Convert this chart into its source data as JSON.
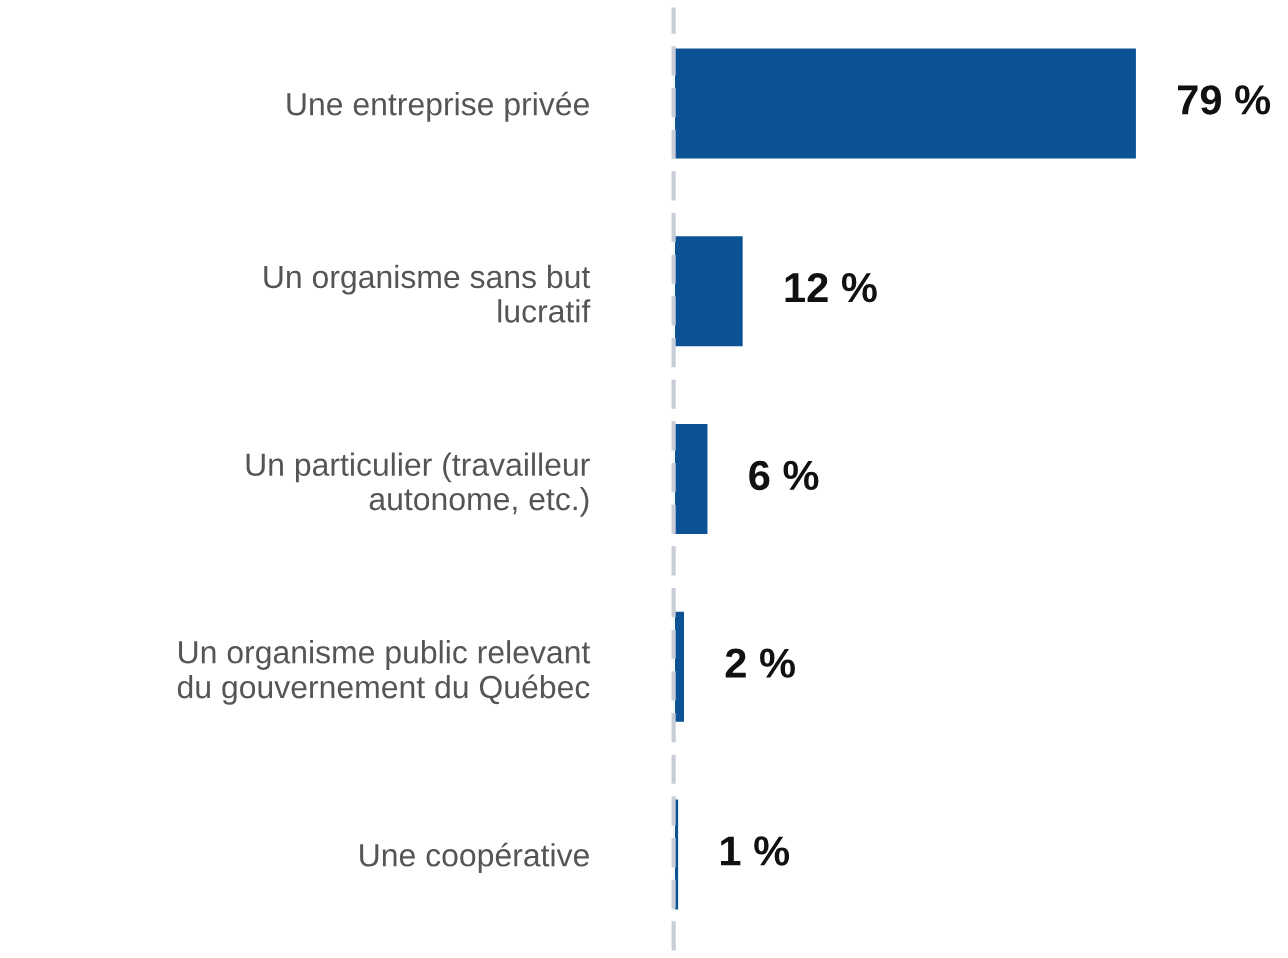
{
  "chart_data": {
    "type": "bar",
    "orientation": "horizontal",
    "categories": [
      "Une entreprise privée",
      "Un organisme sans but\nlucratif",
      "Un particulier (travailleur\nautonome, etc.)",
      "Un organisme public relevant\ndu gouvernement du Québec",
      "Une coopérative"
    ],
    "values": [
      79,
      12,
      6,
      2,
      1
    ],
    "color": "#0b5394",
    "value_labels": [
      "79 %",
      "12 %",
      "6 %",
      "2 %",
      "1 %"
    ],
    "grid": false,
    "legend": false
  }
}
